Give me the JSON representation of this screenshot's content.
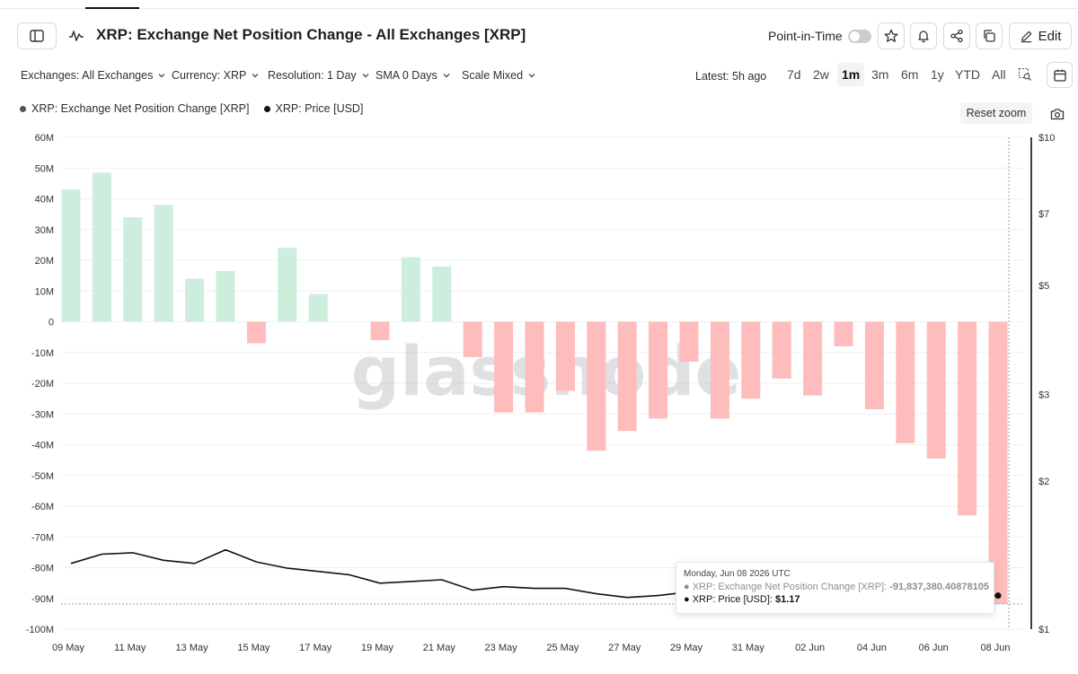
{
  "header": {
    "title": "XRP: Exchange Net Position Change - All Exchanges [XRP]",
    "point_in_time_label": "Point-in-Time",
    "edit_label": "Edit"
  },
  "filters": {
    "exchanges": "Exchanges: All Exchanges",
    "currency": "Currency: XRP",
    "resolution": "Resolution: 1 Day",
    "sma": "SMA 0 Days",
    "scale": "Scale Mixed",
    "latest": "Latest: 5h ago",
    "ranges": [
      "7d",
      "2w",
      "1m",
      "3m",
      "6m",
      "1y",
      "YTD",
      "All"
    ],
    "active_range": "1m"
  },
  "legend": {
    "series1": "XRP: Exchange Net Position Change [XRP]",
    "series2": "XRP: Price [USD]"
  },
  "reset_zoom": "Reset zoom",
  "watermark": "glassnode",
  "tooltip": {
    "date": "Monday, Jun 08 2026 UTC",
    "row1_label": "XRP: Exchange Net Position Change [XRP]:",
    "row1_value": "-91,837,380.40878105",
    "row2_label": "XRP: Price [USD]:",
    "row2_value": "$1.17"
  },
  "colors": {
    "positive_bar": "#cdeedd",
    "negative_bar": "#ffbcbc",
    "price_line": "#111111"
  },
  "chart_data": {
    "type": "bar",
    "x": [
      "09 May",
      "10 May",
      "11 May",
      "12 May",
      "13 May",
      "14 May",
      "15 May",
      "16 May",
      "17 May",
      "18 May",
      "19 May",
      "20 May",
      "21 May",
      "22 May",
      "23 May",
      "24 May",
      "25 May",
      "26 May",
      "27 May",
      "28 May",
      "29 May",
      "30 May",
      "31 May",
      "01 Jun",
      "02 Jun",
      "03 Jun",
      "04 Jun",
      "05 Jun",
      "06 Jun",
      "07 Jun",
      "08 Jun"
    ],
    "x_tick_labels": [
      "09 May",
      "11 May",
      "13 May",
      "15 May",
      "17 May",
      "19 May",
      "21 May",
      "23 May",
      "25 May",
      "27 May",
      "29 May",
      "31 May",
      "02 Jun",
      "04 Jun",
      "06 Jun",
      "08 Jun"
    ],
    "series": [
      {
        "name": "XRP: Exchange Net Position Change [XRP]",
        "type": "bar",
        "axis": "left",
        "values": [
          43,
          48.5,
          34,
          38,
          14,
          16.5,
          -7,
          24,
          9,
          0,
          -6,
          21,
          18,
          -11.5,
          -29.5,
          -29.5,
          -22.5,
          -42,
          -35.5,
          -31.5,
          -13,
          -31.5,
          -25,
          -18.5,
          -24,
          -8,
          -28.5,
          -39.5,
          -44.5,
          -63,
          -91.8
        ]
      },
      {
        "name": "XRP: Price [USD]",
        "type": "line",
        "axis": "right",
        "values": [
          1.36,
          1.42,
          1.43,
          1.38,
          1.36,
          1.45,
          1.37,
          1.33,
          1.31,
          1.29,
          1.24,
          1.25,
          1.26,
          1.2,
          1.22,
          1.21,
          1.21,
          1.18,
          1.16,
          1.17,
          1.19,
          1.17,
          1.17,
          1.17,
          1.17,
          1.17,
          1.17,
          1.17,
          1.17,
          1.17,
          1.17
        ]
      }
    ],
    "left_axis": {
      "unit": "M",
      "ylim": [
        -100,
        60
      ],
      "ticks": [
        "60M",
        "50M",
        "40M",
        "30M",
        "20M",
        "10M",
        "0",
        "-10M",
        "-20M",
        "-30M",
        "-40M",
        "-50M",
        "-60M",
        "-70M",
        "-80M",
        "-90M",
        "-100M"
      ]
    },
    "right_axis": {
      "scale": "log",
      "ylim": [
        1,
        10
      ],
      "ticks": [
        "$10",
        "$7",
        "$5",
        "$3",
        "$2",
        "$1"
      ]
    },
    "grid": true
  }
}
